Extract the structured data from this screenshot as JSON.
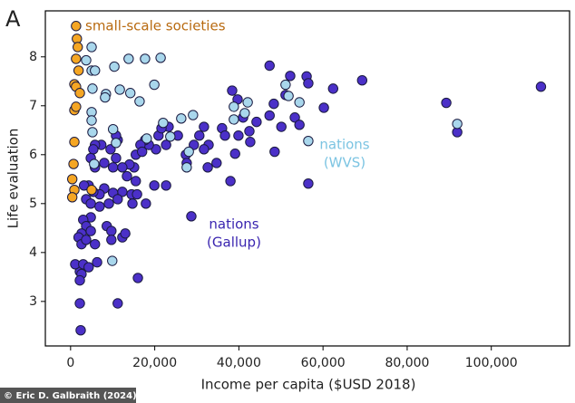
{
  "chart_data": {
    "type": "scatter",
    "panel_label": "A",
    "xlabel": "Income per capita ($USD 2018)",
    "ylabel": "Life evaluation",
    "credit": "© Eric D. Galbraith (2024)",
    "xlim": [
      -6000,
      118600
    ],
    "ylim": [
      2.09,
      8.94
    ],
    "xticks": [
      0,
      {
        "value": 20000,
        "label": "20,000"
      },
      {
        "value": 40000,
        "label": "40,000"
      },
      {
        "value": 60000,
        "label": "60,000"
      },
      {
        "value": 80000,
        "label": "80,000"
      },
      {
        "value": 100000,
        "label": "100,000"
      }
    ],
    "yticks": [
      3,
      4,
      5,
      6,
      7,
      8
    ],
    "annotations": [
      {
        "text": [
          "small-scale societies"
        ],
        "color": "#b86a10"
      },
      {
        "text": [
          "nations",
          "(WVS)"
        ],
        "color": "#7cc4e2"
      },
      {
        "text": [
          "nations",
          "(Gallup)"
        ],
        "color": "#3a25b0"
      }
    ],
    "series": [
      {
        "color": "#4b30c8",
        "x": [
          47300,
          56100,
          56500,
          52200,
          62400,
          69300,
          89300,
          91900,
          111800,
          60200,
          51100,
          48300,
          47300,
          44200,
          41000,
          42500,
          38400,
          39700,
          42700,
          36000,
          36700,
          39900,
          39100,
          38000,
          48500,
          50100,
          53300,
          54400,
          56500,
          31700,
          32800,
          30600,
          29300,
          31700,
          27400,
          27600,
          25500,
          23300,
          22700,
          20300,
          20900,
          21600,
          18600,
          17700,
          16600,
          15500,
          17000,
          15100,
          14000,
          11200,
          10800,
          9500,
          7300,
          5800,
          5400,
          4800,
          5800,
          8000,
          10100,
          10800,
          12300,
          13400,
          15500,
          14500,
          12300,
          10100,
          8000,
          6900,
          5400,
          4300,
          3200,
          3700,
          4800,
          6900,
          9100,
          11200,
          14700,
          4800,
          3000,
          3700,
          4800,
          2600,
          1900,
          2600,
          3700,
          5800,
          8600,
          9700,
          12300,
          13000,
          9700,
          2200,
          1100,
          2600,
          3000,
          4300,
          6300,
          2200,
          2200,
          2400,
          11200,
          16000,
          28700,
          22700,
          19900,
          17900,
          15800,
          34700,
          32600
        ],
        "values": [
          7.82,
          7.6,
          7.46,
          7.61,
          7.35,
          7.52,
          7.06,
          6.46,
          7.39,
          6.96,
          7.22,
          7.04,
          6.8,
          6.67,
          6.76,
          6.48,
          7.31,
          7.13,
          6.26,
          6.54,
          6.39,
          6.39,
          6.02,
          5.46,
          6.06,
          6.57,
          6.76,
          6.61,
          5.41,
          6.57,
          6.2,
          6.39,
          6.2,
          6.11,
          6.0,
          5.83,
          6.39,
          6.57,
          6.2,
          6.11,
          6.39,
          6.54,
          6.2,
          6.3,
          6.2,
          6.0,
          6.06,
          5.74,
          5.8,
          6.3,
          6.39,
          6.11,
          6.2,
          6.2,
          6.11,
          5.93,
          5.74,
          5.83,
          5.74,
          5.93,
          5.74,
          5.56,
          5.46,
          5.19,
          5.24,
          5.22,
          5.31,
          5.19,
          5.24,
          5.37,
          5.37,
          5.09,
          5.0,
          4.94,
          5.0,
          5.09,
          5.0,
          4.72,
          4.67,
          4.54,
          4.44,
          4.39,
          4.31,
          4.17,
          4.26,
          4.17,
          4.54,
          4.44,
          4.31,
          4.39,
          4.26,
          3.61,
          3.76,
          3.56,
          3.76,
          3.7,
          3.8,
          3.43,
          2.96,
          2.41,
          2.96,
          3.48,
          4.74,
          5.37,
          5.37,
          5.0,
          5.19,
          5.83,
          5.74
        ]
      },
      {
        "color": "#a9d7ec",
        "x": [
          5000,
          13800,
          17700,
          21400,
          10400,
          3700,
          5000,
          5800,
          5200,
          8400,
          8200,
          11700,
          14200,
          16400,
          19900,
          5000,
          5000,
          10100,
          10800,
          18100,
          22000,
          26300,
          29100,
          23700,
          28100,
          27600,
          9900,
          38800,
          38800,
          42100,
          41400,
          51100,
          51800,
          54400,
          56500,
          91900,
          5600,
          5200
        ],
        "values": [
          8.2,
          7.96,
          7.96,
          7.98,
          7.8,
          7.93,
          7.72,
          7.72,
          7.35,
          7.24,
          7.17,
          7.33,
          7.26,
          7.09,
          7.43,
          6.87,
          6.7,
          6.52,
          6.24,
          6.33,
          6.65,
          6.74,
          6.81,
          6.37,
          6.06,
          5.74,
          3.83,
          6.98,
          6.72,
          7.07,
          6.85,
          7.43,
          7.2,
          7.07,
          6.28,
          6.63,
          5.81,
          6.46
        ]
      },
      {
        "color": "#f5a623",
        "x": [
          1300,
          1500,
          1700,
          1300,
          1900,
          900,
          1300,
          2200,
          900,
          1300,
          900,
          700,
          400,
          900,
          400,
          5000
        ],
        "values": [
          8.63,
          8.37,
          8.2,
          7.96,
          7.72,
          7.44,
          7.39,
          7.26,
          6.91,
          6.98,
          6.26,
          5.81,
          5.5,
          5.28,
          5.13,
          5.28
        ]
      }
    ]
  }
}
